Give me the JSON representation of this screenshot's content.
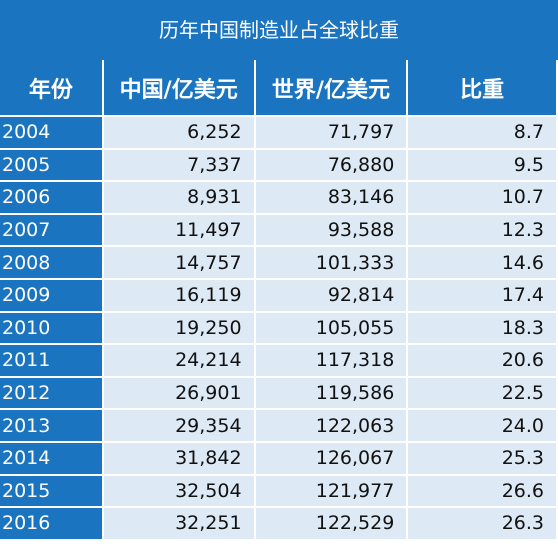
{
  "title": "历年中国制造业占全球比重",
  "chart_data": {
    "type": "table",
    "title": "历年中国制造业占全球比重",
    "columns": [
      "年份",
      "中国/亿美元",
      "世界/亿美元",
      "比重"
    ],
    "rows": [
      [
        "2004",
        "6,252",
        "71,797",
        "8.7"
      ],
      [
        "2005",
        "7,337",
        "76,880",
        "9.5"
      ],
      [
        "2006",
        "8,931",
        "83,146",
        "10.7"
      ],
      [
        "2007",
        "11,497",
        "93,588",
        "12.3"
      ],
      [
        "2008",
        "14,757",
        "101,333",
        "14.6"
      ],
      [
        "2009",
        "16,119",
        "92,814",
        "17.4"
      ],
      [
        "2010",
        "19,250",
        "105,055",
        "18.3"
      ],
      [
        "2011",
        "24,214",
        "117,318",
        "20.6"
      ],
      [
        "2012",
        "26,901",
        "119,586",
        "22.5"
      ],
      [
        "2013",
        "29,354",
        "122,063",
        "24.0"
      ],
      [
        "2014",
        "31,842",
        "126,067",
        "25.3"
      ],
      [
        "2015",
        "32,504",
        "121,977",
        "26.6"
      ],
      [
        "2016",
        "32,251",
        "122,529",
        "26.3"
      ]
    ]
  },
  "colors": {
    "header_blue": "#1b74bf",
    "cell_light": "#dde9f5",
    "header_text": "#ffffff",
    "cell_text": "#111111"
  }
}
